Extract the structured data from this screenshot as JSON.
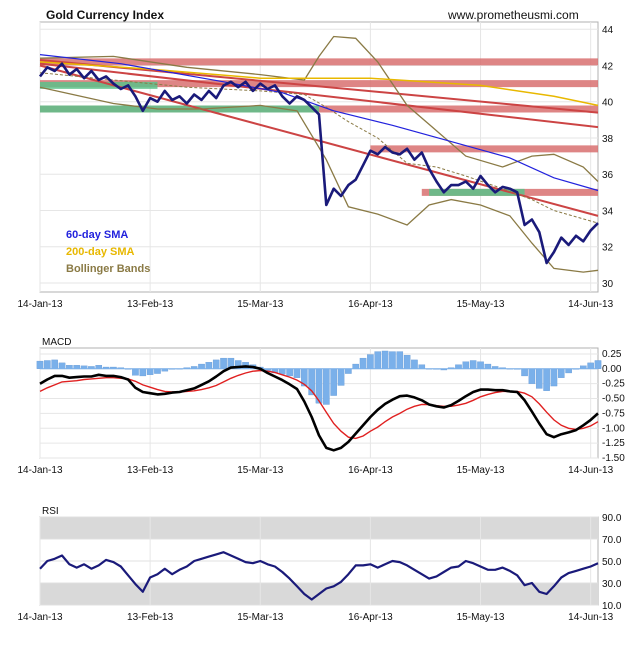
{
  "chart_data": [
    {
      "type": "line",
      "title": "Gold Currency Index",
      "source_label": "www.prometheusmi.com",
      "xlabels": [
        "14-Jan-13",
        "13-Feb-13",
        "15-Mar-13",
        "16-Apr-13",
        "15-May-13",
        "14-Jun-13"
      ],
      "ylim": [
        29.5,
        44.4
      ],
      "yticks": [
        30,
        32,
        34,
        36,
        38,
        40,
        42,
        44
      ],
      "legend": [
        {
          "label": "60-day SMA",
          "color": "#2222dd"
        },
        {
          "label": "200-day SMA",
          "color": "#e8b800"
        },
        {
          "label": "Bollinger Bands",
          "color": "#8a7a45"
        }
      ],
      "colors": {
        "price": "#1a1a7a",
        "sma60": "#2222dd",
        "sma200": "#e8b800",
        "bollinger": "#8a7a45",
        "trendline": "#cc4444",
        "resistance": "#d97070",
        "support": "#5cc28a"
      },
      "series": [
        {
          "key": "price",
          "values": [
            41.4,
            41.9,
            41.7,
            42.1,
            41.5,
            41.8,
            41.3,
            41.7,
            41.2,
            41.4,
            41.0,
            40.7,
            40.9,
            40.3,
            39.5,
            40.2,
            40.0,
            40.6,
            40.1,
            40.3,
            39.9,
            40.4,
            40.1,
            40.6,
            40.2,
            40.9,
            41.1,
            40.8,
            41.1,
            40.6,
            41.0,
            40.7,
            40.9,
            40.3,
            39.9,
            40.3,
            40.1,
            39.7,
            39.3,
            34.3,
            35.2,
            34.8,
            35.4,
            35.7,
            36.5,
            37.3,
            37.1,
            37.5,
            37.2,
            37.1,
            37.4,
            36.8,
            37.2,
            36.3,
            35.6,
            35.0,
            35.4,
            35.4,
            35.6,
            35.2,
            35.9,
            35.4,
            35.0,
            35.3,
            35.2,
            35.0,
            33.2,
            33.5,
            32.8,
            31.1,
            31.7,
            32.5,
            32.1,
            32.6,
            32.3,
            32.9,
            33.3
          ]
        },
        {
          "key": "sma60",
          "points": [
            [
              0,
              42.6
            ],
            [
              11,
              42.1
            ],
            [
              25,
              41.1
            ],
            [
              33,
              40.5
            ],
            [
              40,
              39.5
            ],
            [
              48,
              38.7
            ],
            [
              56,
              37.8
            ],
            [
              64,
              36.9
            ],
            [
              70,
              35.8
            ],
            [
              76,
              35.1
            ]
          ]
        },
        {
          "key": "sma200",
          "points": [
            [
              0,
              42.2
            ],
            [
              15,
              41.8
            ],
            [
              30,
              41.3
            ],
            [
              45,
              41.3
            ],
            [
              60,
              40.9
            ],
            [
              70,
              40.3
            ],
            [
              76,
              39.8
            ]
          ]
        },
        {
          "key": "bb_upper",
          "points": [
            [
              0,
              42.4
            ],
            [
              10,
              42.5
            ],
            [
              20,
              41.9
            ],
            [
              30,
              41.5
            ],
            [
              36,
              41.2
            ],
            [
              38,
              42.5
            ],
            [
              40,
              43.6
            ],
            [
              43,
              43.5
            ],
            [
              46,
              42.2
            ],
            [
              50,
              39.8
            ],
            [
              54,
              38.4
            ],
            [
              58,
              37.0
            ],
            [
              63,
              36.4
            ],
            [
              67,
              37.0
            ],
            [
              70,
              37.1
            ],
            [
              74,
              36.4
            ],
            [
              76,
              35.6
            ]
          ]
        },
        {
          "key": "bb_lower",
          "points": [
            [
              0,
              40.8
            ],
            [
              10,
              39.9
            ],
            [
              16,
              39.6
            ],
            [
              22,
              39.6
            ],
            [
              30,
              39.8
            ],
            [
              35,
              39.5
            ],
            [
              39,
              36.8
            ],
            [
              42,
              34.2
            ],
            [
              46,
              33.8
            ],
            [
              50,
              33.2
            ],
            [
              53,
              34.3
            ],
            [
              56,
              34.6
            ],
            [
              60,
              34.3
            ],
            [
              64,
              33.7
            ],
            [
              67,
              32.2
            ],
            [
              70,
              30.8
            ],
            [
              74,
              30.6
            ],
            [
              76,
              30.7
            ]
          ]
        },
        {
          "key": "bb_mid",
          "points": [
            [
              0,
              41.6
            ],
            [
              10,
              41.2
            ],
            [
              20,
              40.8
            ],
            [
              30,
              40.6
            ],
            [
              36,
              40.4
            ],
            [
              39,
              39.7
            ],
            [
              42,
              38.9
            ],
            [
              46,
              38.0
            ],
            [
              50,
              36.6
            ],
            [
              54,
              36.4
            ],
            [
              58,
              35.9
            ],
            [
              63,
              35.2
            ],
            [
              67,
              34.6
            ],
            [
              70,
              34.0
            ],
            [
              76,
              33.3
            ]
          ]
        }
      ],
      "trendlines": [
        {
          "x1": 0,
          "y1": 42.3,
          "x2": 76,
          "y2": 39.4
        },
        {
          "x1": 0,
          "y1": 42.1,
          "x2": 76,
          "y2": 38.6
        },
        {
          "x1": 0,
          "y1": 42.0,
          "x2": 76,
          "y2": 33.7
        }
      ],
      "resistance_bands": [
        {
          "x1": 0,
          "x2": 76,
          "y": 42.2
        },
        {
          "x1": 0,
          "x2": 76,
          "y": 41.0
        },
        {
          "x1": 0,
          "x2": 76,
          "y": 39.6
        },
        {
          "x1": 45,
          "x2": 76,
          "y": 37.4
        },
        {
          "x1": 52,
          "x2": 76,
          "y": 35.0
        }
      ],
      "support_bands": [
        {
          "x1": 0,
          "x2": 16,
          "y": 40.9
        },
        {
          "x1": 0,
          "x2": 38,
          "y": 39.6
        },
        {
          "x1": 53,
          "x2": 66,
          "y": 35.0
        }
      ]
    },
    {
      "type": "line",
      "title": "MACD",
      "xlabels": [
        "14-Jan-13",
        "13-Feb-13",
        "15-Mar-13",
        "16-Apr-13",
        "15-May-13",
        "14-Jun-13"
      ],
      "ylim": [
        -1.5,
        0.35
      ],
      "yticks": [
        0.25,
        0.0,
        -0.25,
        -0.5,
        -0.75,
        -1.0,
        -1.25,
        -1.5
      ],
      "series": [
        {
          "key": "macd",
          "values": [
            -0.25,
            -0.18,
            -0.12,
            -0.12,
            -0.15,
            -0.14,
            -0.13,
            -0.13,
            -0.1,
            -0.12,
            -0.12,
            -0.14,
            -0.18,
            -0.32,
            -0.39,
            -0.41,
            -0.43,
            -0.42,
            -0.4,
            -0.39,
            -0.36,
            -0.33,
            -0.27,
            -0.21,
            -0.13,
            -0.04,
            0.02,
            0.03,
            0.04,
            0.03,
            0.0,
            -0.07,
            -0.13,
            -0.19,
            -0.26,
            -0.34,
            -0.55,
            -0.81,
            -1.12,
            -1.33,
            -1.37,
            -1.33,
            -1.23,
            -1.09,
            -0.95,
            -0.81,
            -0.69,
            -0.59,
            -0.52,
            -0.46,
            -0.45,
            -0.48,
            -0.53,
            -0.6,
            -0.63,
            -0.65,
            -0.61,
            -0.54,
            -0.46,
            -0.39,
            -0.35,
            -0.35,
            -0.36,
            -0.36,
            -0.38,
            -0.39,
            -0.53,
            -0.72,
            -0.92,
            -1.1,
            -1.15,
            -1.1,
            -1.07,
            -1.03,
            -0.95,
            -0.86,
            -0.75
          ]
        },
        {
          "key": "signal",
          "values": [
            -0.38,
            -0.32,
            -0.27,
            -0.22,
            -0.21,
            -0.2,
            -0.18,
            -0.17,
            -0.16,
            -0.15,
            -0.15,
            -0.16,
            -0.17,
            -0.21,
            -0.27,
            -0.31,
            -0.35,
            -0.38,
            -0.39,
            -0.39,
            -0.38,
            -0.37,
            -0.35,
            -0.32,
            -0.28,
            -0.22,
            -0.16,
            -0.11,
            -0.07,
            -0.04,
            -0.03,
            -0.04,
            -0.06,
            -0.1,
            -0.14,
            -0.19,
            -0.26,
            -0.37,
            -0.54,
            -0.73,
            -0.92,
            -1.05,
            -1.15,
            -1.17,
            -1.13,
            -1.05,
            -0.98,
            -0.89,
            -0.81,
            -0.75,
            -0.68,
            -0.63,
            -0.6,
            -0.6,
            -0.62,
            -0.63,
            -0.63,
            -0.61,
            -0.58,
            -0.53,
            -0.47,
            -0.43,
            -0.4,
            -0.38,
            -0.38,
            -0.38,
            -0.41,
            -0.47,
            -0.59,
            -0.73,
            -0.86,
            -0.95,
            -1.0,
            -1.02,
            -1.0,
            -0.96,
            -0.89
          ]
        },
        {
          "key": "histogram",
          "values": [
            0.13,
            0.14,
            0.15,
            0.1,
            0.06,
            0.06,
            0.05,
            0.04,
            0.06,
            0.03,
            0.03,
            0.02,
            -0.01,
            -0.11,
            -0.12,
            -0.1,
            -0.08,
            -0.04,
            -0.01,
            0.0,
            0.02,
            0.04,
            0.08,
            0.11,
            0.15,
            0.18,
            0.18,
            0.14,
            0.11,
            0.07,
            0.03,
            -0.03,
            -0.07,
            -0.09,
            -0.12,
            -0.15,
            -0.29,
            -0.44,
            -0.58,
            -0.6,
            -0.45,
            -0.28,
            -0.08,
            0.08,
            0.18,
            0.24,
            0.29,
            0.3,
            0.29,
            0.29,
            0.23,
            0.15,
            0.07,
            0.0,
            -0.01,
            -0.02,
            0.02,
            0.07,
            0.12,
            0.14,
            0.12,
            0.08,
            0.04,
            0.02,
            0.0,
            -0.01,
            -0.12,
            -0.25,
            -0.33,
            -0.37,
            -0.29,
            -0.15,
            -0.07,
            -0.01,
            0.05,
            0.1,
            0.14
          ]
        }
      ],
      "colors": {
        "macd": "#000000",
        "signal": "#e02020",
        "histogram": "#7ab0ea"
      }
    },
    {
      "type": "line",
      "title": "RSI",
      "xlabels": [
        "14-Jan-13",
        "13-Feb-13",
        "15-Mar-13",
        "16-Apr-13",
        "15-May-13",
        "14-Jun-13"
      ],
      "ylim": [
        10,
        90
      ],
      "yticks": [
        90.0,
        70.0,
        50.0,
        30.0,
        10.0
      ],
      "shaded_bands": [
        [
          70,
          90
        ],
        [
          10,
          30
        ]
      ],
      "series": [
        {
          "key": "rsi",
          "values": [
            43,
            50,
            52,
            55,
            47,
            44,
            47,
            43,
            46,
            51,
            49,
            45,
            37,
            29,
            22,
            35,
            38,
            43,
            38,
            42,
            45,
            50,
            52,
            54,
            56,
            58,
            55,
            52,
            49,
            48,
            50,
            47,
            45,
            40,
            34,
            27,
            20,
            15,
            20,
            25,
            27,
            31,
            38,
            46,
            46,
            47,
            44,
            47,
            50,
            49,
            46,
            42,
            38,
            34,
            36,
            40,
            44,
            45,
            50,
            48,
            45,
            42,
            42,
            44,
            41,
            37,
            28,
            30,
            22,
            20,
            27,
            35,
            39,
            41,
            43,
            45,
            48
          ]
        }
      ],
      "colors": {
        "rsi": "#1a1a7a",
        "band": "#d9d9d9"
      }
    }
  ]
}
